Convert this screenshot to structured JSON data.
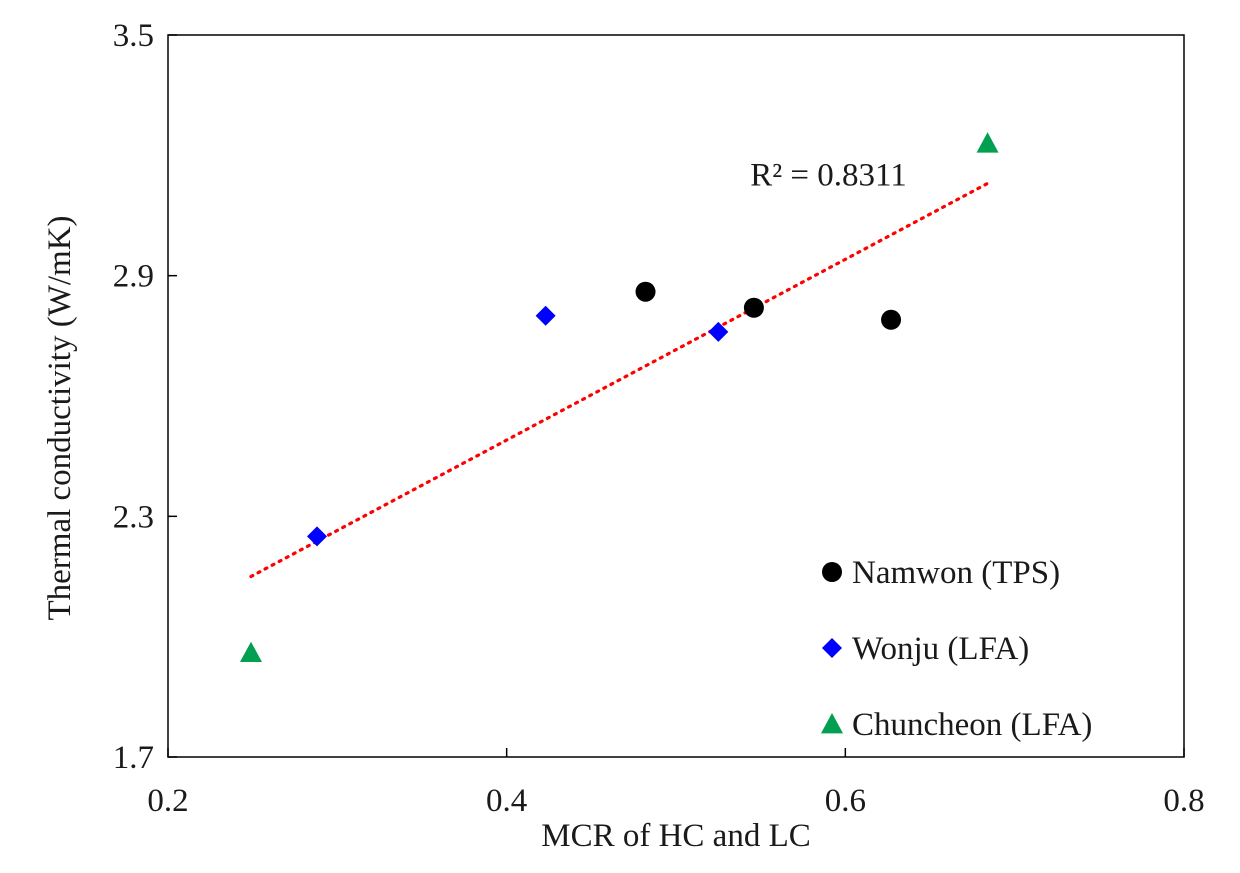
{
  "chart_data": {
    "type": "scatter",
    "xlabel": "MCR of HC and LC",
    "ylabel": "Thermal conductivity (W/mK)",
    "xlim": [
      0.2,
      0.8
    ],
    "ylim": [
      1.7,
      3.5
    ],
    "x_ticks": [
      "0.2",
      "0.4",
      "0.6",
      "0.8"
    ],
    "y_ticks": [
      "1.7",
      "2.3",
      "2.9",
      "3.5"
    ],
    "grid": false,
    "legend_position": "bottom-right",
    "series": [
      {
        "name": "Namwon (TPS)",
        "marker": "circle",
        "color": "#000000",
        "points": [
          [
            0.482,
            2.86
          ],
          [
            0.546,
            2.82
          ],
          [
            0.627,
            2.79
          ]
        ]
      },
      {
        "name": "Wonju (LFA)",
        "marker": "diamond",
        "color": "#0000ff",
        "points": [
          [
            0.288,
            2.25
          ],
          [
            0.423,
            2.8
          ],
          [
            0.525,
            2.76
          ]
        ]
      },
      {
        "name": "Chuncheon (LFA)",
        "marker": "triangle",
        "color": "#00a050",
        "points": [
          [
            0.249,
            1.96
          ],
          [
            0.684,
            3.23
          ]
        ]
      }
    ],
    "trendline": {
      "type": "linear",
      "style": "dotted",
      "color": "#ff0000",
      "x_range": [
        0.249,
        0.684
      ],
      "y_range": [
        2.15,
        3.13
      ],
      "label": "R² = 0.8311",
      "label_anchor": [
        0.535,
        3.15
      ]
    }
  }
}
